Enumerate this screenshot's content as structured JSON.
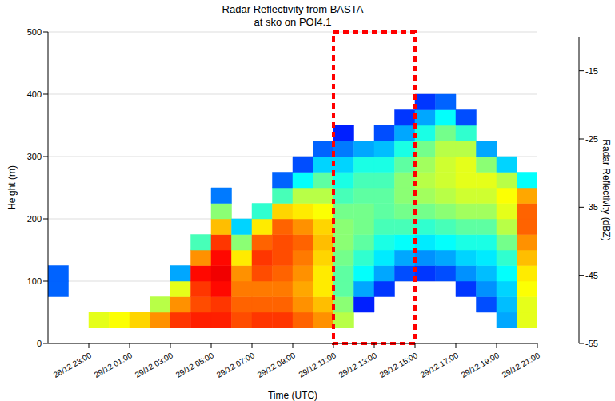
{
  "chart_data": {
    "type": "heatmap",
    "title": "Radar Reflectivity from BASTA",
    "subtitle": "at sko on POI4.1",
    "x_label": "Time (UTC)",
    "y_label": "Height (m)",
    "xlim": [
      -3,
      21
    ],
    "xticks": [
      {
        "value": -1,
        "label": "28/12 23:00"
      },
      {
        "value": 1,
        "label": "29/12 01:00"
      },
      {
        "value": 3,
        "label": "29/12 03:00"
      },
      {
        "value": 5,
        "label": "29/12 05:00"
      },
      {
        "value": 7,
        "label": "29/12 07:00"
      },
      {
        "value": 9,
        "label": "29/12 09:00"
      },
      {
        "value": 11,
        "label": "29/12 11:00"
      },
      {
        "value": 13,
        "label": "29/12 13:00"
      },
      {
        "value": 15,
        "label": "29/12 15:00"
      },
      {
        "value": 17,
        "label": "29/12 17:00"
      },
      {
        "value": 19,
        "label": "29/12 19:00"
      },
      {
        "value": 21,
        "label": "29/12 21:00"
      }
    ],
    "ylim": [
      0,
      500
    ],
    "yticks": [
      0,
      100,
      200,
      300,
      400,
      500
    ],
    "grid": true,
    "x": [
      -3,
      -2,
      -1,
      0,
      1,
      2,
      3,
      4,
      5,
      6,
      7,
      8,
      9,
      10,
      11,
      12,
      13,
      14,
      15,
      16,
      17,
      18,
      19,
      20
    ],
    "y": [
      0,
      25,
      50,
      75,
      100,
      125,
      150,
      175,
      200,
      225,
      250,
      275,
      300,
      325,
      350,
      375
    ],
    "cells": [
      [
        null,
        null,
        null,
        -45,
        -45,
        null,
        null,
        null,
        null,
        null,
        null,
        null,
        null,
        null,
        null,
        null
      ],
      [
        null,
        null,
        null,
        null,
        null,
        null,
        null,
        null,
        null,
        null,
        null,
        null,
        null,
        null,
        null,
        null
      ],
      [
        null,
        -28,
        null,
        null,
        null,
        null,
        null,
        null,
        null,
        null,
        null,
        null,
        null,
        null,
        null,
        null
      ],
      [
        null,
        -27,
        null,
        null,
        null,
        null,
        null,
        null,
        null,
        null,
        null,
        null,
        null,
        null,
        null,
        null
      ],
      [
        null,
        -25,
        null,
        null,
        null,
        null,
        null,
        null,
        null,
        null,
        null,
        null,
        null,
        null,
        null,
        null
      ],
      [
        null,
        -22,
        -30,
        null,
        null,
        null,
        null,
        null,
        null,
        null,
        null,
        null,
        null,
        null,
        null,
        null
      ],
      [
        null,
        -18,
        -22,
        -28,
        -42,
        null,
        null,
        null,
        null,
        null,
        null,
        null,
        null,
        null,
        null,
        null
      ],
      [
        null,
        -17,
        -19,
        -18,
        -16,
        -22,
        -35,
        null,
        null,
        null,
        null,
        null,
        null,
        null,
        null,
        null
      ],
      [
        null,
        -17,
        -18,
        -16,
        -15,
        -16,
        -18,
        -24,
        -32,
        -44,
        null,
        null,
        null,
        null,
        null,
        null
      ],
      [
        null,
        -19,
        -20,
        -21,
        -22,
        -26,
        -32,
        -40,
        null,
        null,
        null,
        null,
        null,
        null,
        null,
        null
      ],
      [
        null,
        -18,
        -20,
        -21,
        -19,
        -18,
        -20,
        -26,
        -36,
        null,
        null,
        null,
        null,
        null,
        null,
        null
      ],
      [
        null,
        -18,
        -20,
        -21,
        -20,
        -19,
        -19,
        -20,
        -25,
        -35,
        -45,
        null,
        null,
        null,
        null,
        null
      ],
      [
        null,
        -20,
        -22,
        -23,
        -22,
        -21,
        -20,
        -22,
        -26,
        -30,
        -38,
        -46,
        null,
        null,
        null,
        null
      ],
      [
        null,
        -22,
        -24,
        -26,
        -26,
        -25,
        -24,
        -25,
        -27,
        -30,
        -34,
        -40,
        -45,
        null,
        null,
        null
      ],
      [
        null,
        -30,
        -32,
        -34,
        -34,
        -33,
        -32,
        -32,
        -33,
        -35,
        -37,
        -40,
        -44,
        -48,
        null,
        null
      ],
      [
        null,
        null,
        -48,
        -42,
        -38,
        -36,
        -34,
        -33,
        -33,
        -34,
        -35,
        -37,
        -42,
        null,
        null,
        null
      ],
      [
        null,
        null,
        null,
        -47,
        -42,
        -39,
        -37,
        -35,
        -34,
        -34,
        -35,
        -37,
        -41,
        -46,
        null,
        null
      ],
      [
        null,
        null,
        null,
        null,
        -46,
        -42,
        -38,
        -35,
        -33,
        -32,
        -32,
        -34,
        -37,
        -42,
        -47,
        null
      ],
      [
        null,
        null,
        null,
        null,
        -47,
        -43,
        -39,
        -36,
        -33,
        -31,
        -30,
        -31,
        -33,
        -37,
        -42,
        -47
      ],
      [
        null,
        null,
        null,
        null,
        -46,
        -42,
        -38,
        -35,
        -32,
        -30,
        -29,
        -29,
        -30,
        -33,
        -38,
        -45
      ],
      [
        null,
        null,
        null,
        -47,
        -43,
        -40,
        -37,
        -34,
        -31,
        -29,
        -28,
        -28,
        -30,
        -36,
        -46,
        null
      ],
      [
        null,
        null,
        -46,
        -43,
        -41,
        -39,
        -37,
        -34,
        -31,
        -29,
        -28,
        -32,
        -42,
        null,
        null,
        null
      ],
      [
        null,
        -42,
        -41,
        -40,
        -38,
        -36,
        -33,
        -30,
        -28,
        -27,
        -30,
        -40,
        null,
        null,
        null,
        null
      ],
      [
        null,
        -28,
        -28,
        -27,
        -26,
        -24,
        -22,
        -20,
        -20,
        -23,
        -38,
        null,
        null,
        null,
        null,
        null
      ]
    ],
    "colorbar": {
      "label": "Radar Reflectivity (dBZ)",
      "lim": [
        -55,
        -10
      ],
      "ticks": [
        -55,
        -45,
        -35,
        -25,
        -15
      ]
    },
    "annotations": [
      {
        "x": [
          11,
          15
        ],
        "y": [
          0,
          500
        ],
        "color": "#ff0000",
        "line_style": "dashed"
      }
    ]
  }
}
